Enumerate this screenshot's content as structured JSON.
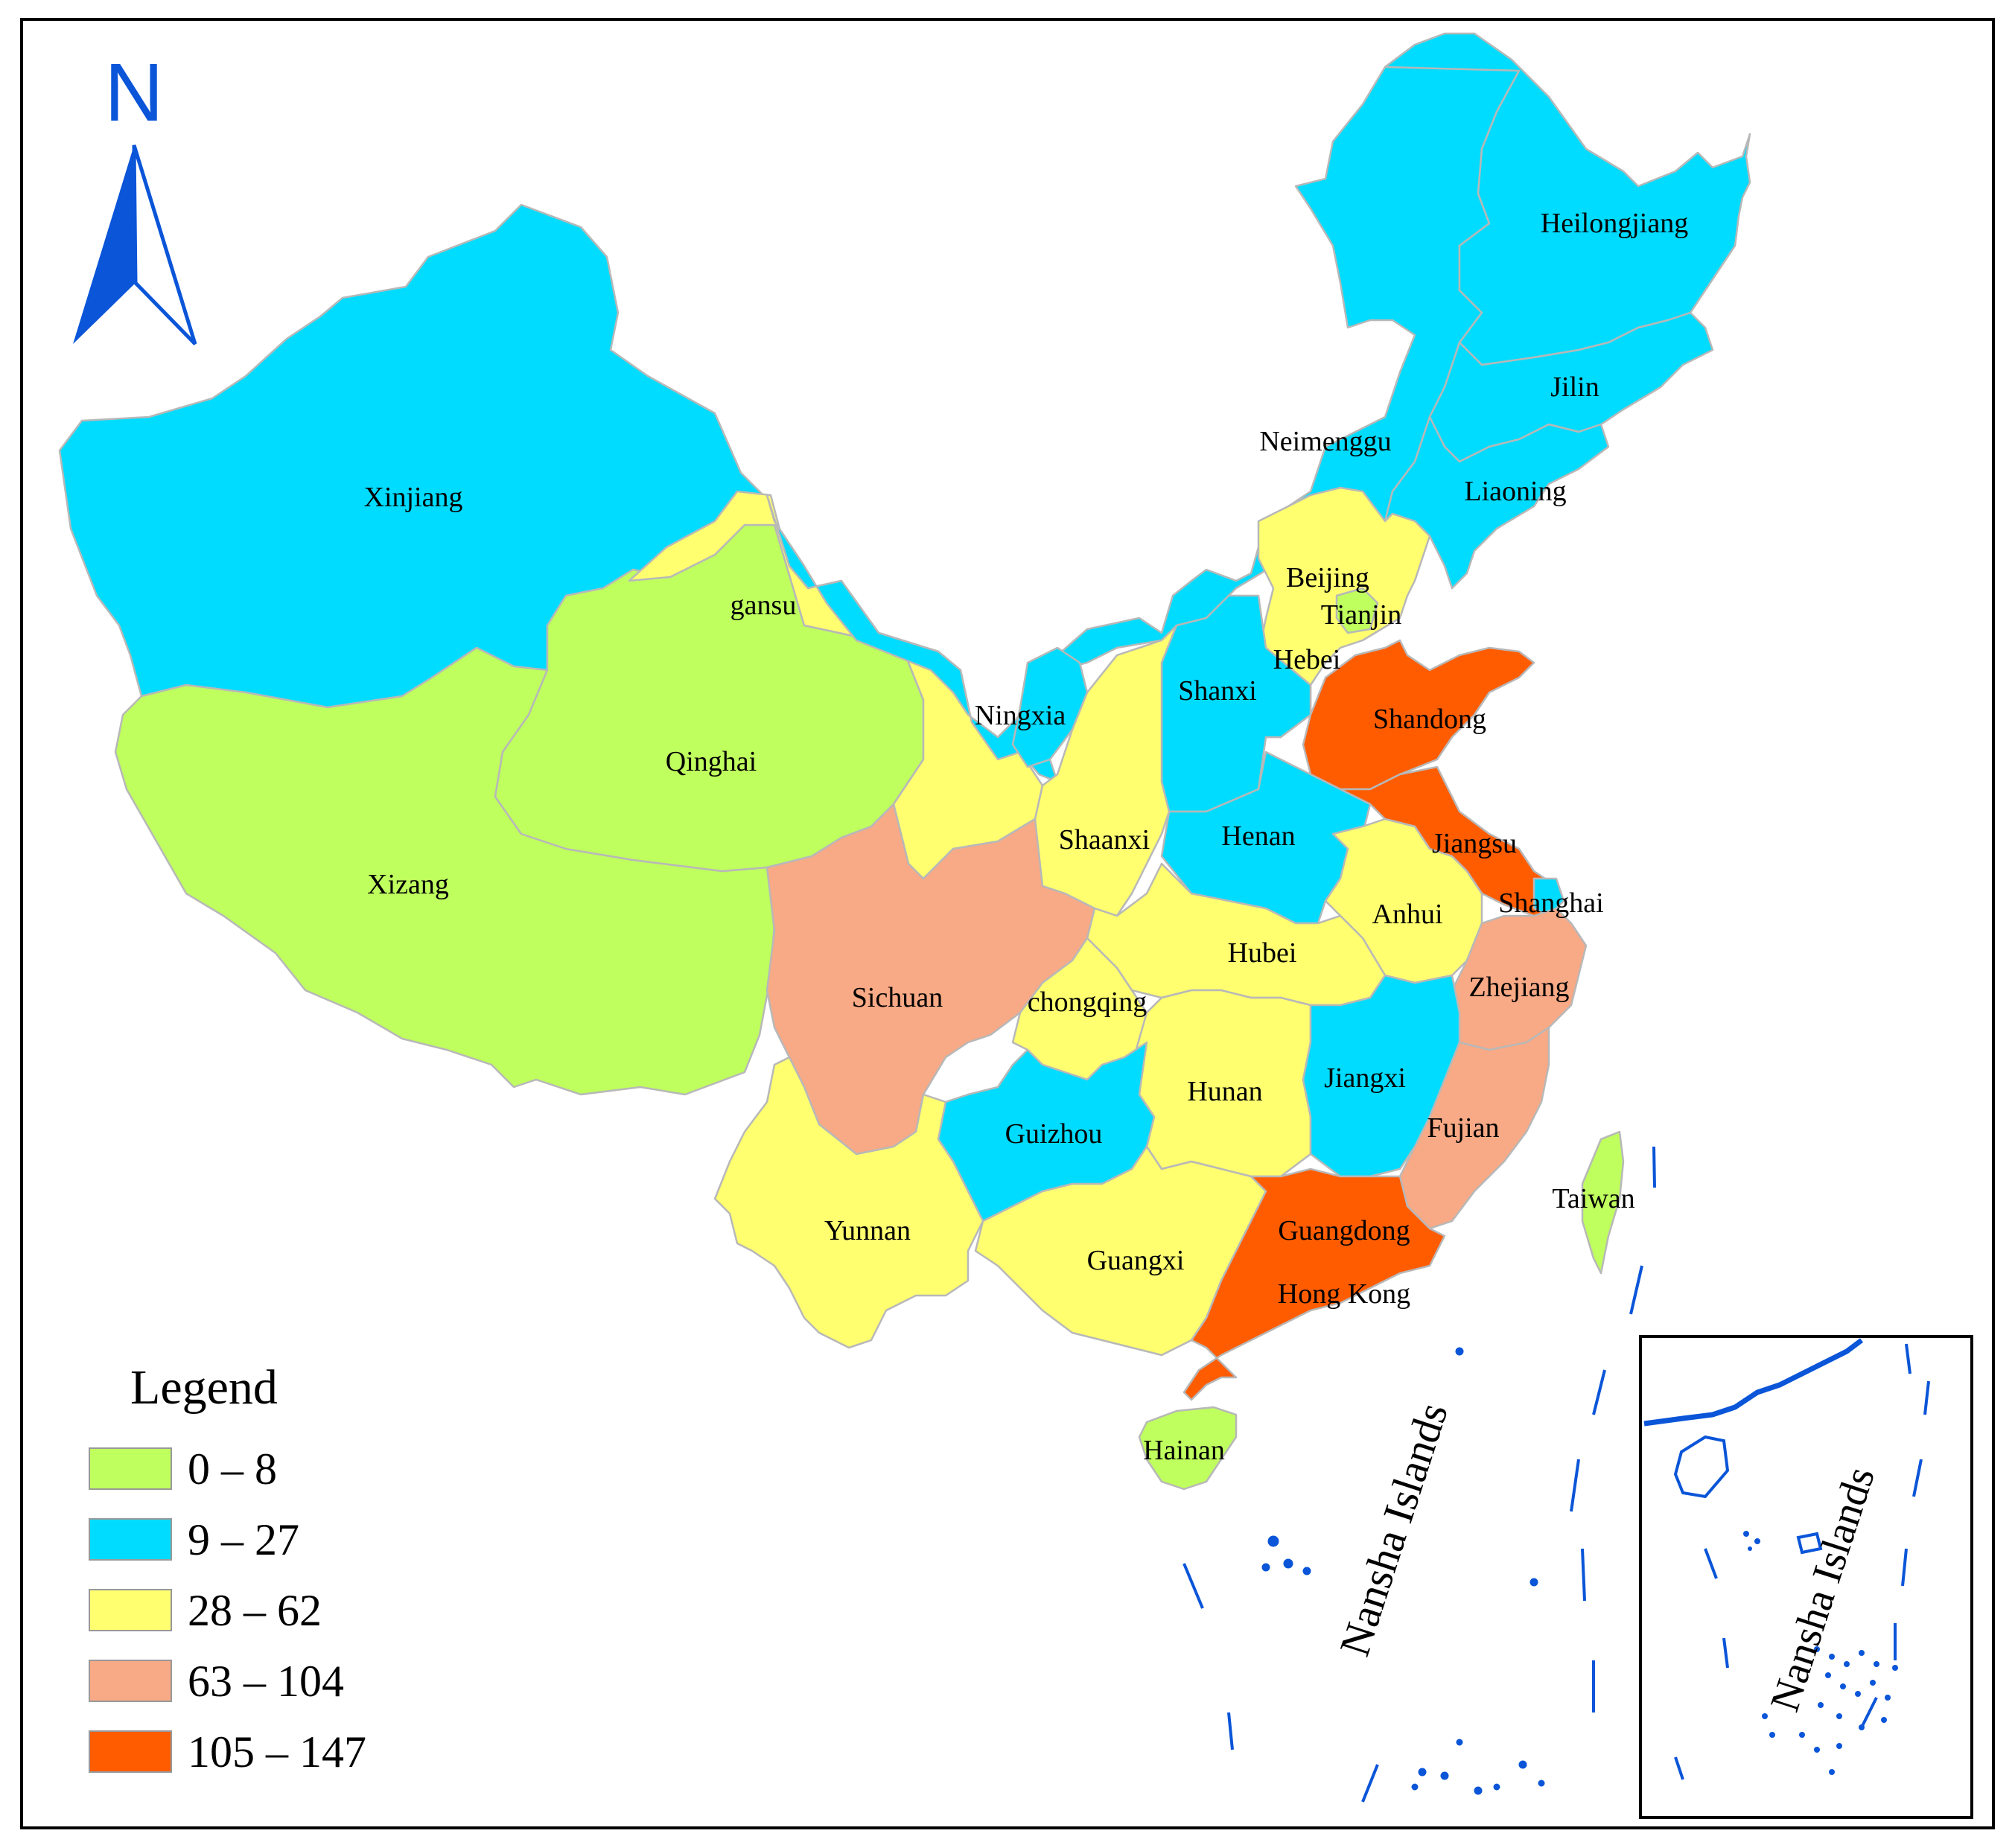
{
  "north_arrow": {
    "label": "N",
    "color": "#0a55d8"
  },
  "colors": {
    "c0_8": "#bfff5e",
    "c9_27": "#00dcff",
    "c28_62": "#ffff70",
    "c63_104": "#f8a985",
    "c105_147": "#ff5c00",
    "coast": "#0a55d8"
  },
  "legend": {
    "title": "Legend",
    "items": [
      {
        "label": "0 – 8",
        "color": "#bfff5e"
      },
      {
        "label": "9 – 27",
        "color": "#00dcff"
      },
      {
        "label": "28 – 62",
        "color": "#ffff70"
      },
      {
        "label": "63 – 104",
        "color": "#f8a985"
      },
      {
        "label": "105 – 147",
        "color": "#ff5c00"
      }
    ]
  },
  "provinces": {
    "xinjiang": "Xinjiang",
    "xizang": "Xizang",
    "qinghai": "Qinghai",
    "gansu": "gansu",
    "neimenggu": "Neimenggu",
    "heilongjiang": "Heilongjiang",
    "jilin": "Jilin",
    "liaoning": "Liaoning",
    "beijing": "Beijing",
    "tianjin": "Tianjin",
    "hebei": "Hebei",
    "shanxi": "Shanxi",
    "ningxia": "Ningxia",
    "shaanxi": "Shaanxi",
    "shandong": "Shandong",
    "henan": "Henan",
    "jiangsu": "Jiangsu",
    "shanghai": "Shanghai",
    "anhui": "Anhui",
    "hubei": "Hubei",
    "zhejiang": "Zhejiang",
    "sichuan": "Sichuan",
    "chongqing": "chongqing",
    "jiangxi": "Jiangxi",
    "hunan": "Hunan",
    "guizhou": "Guizhou",
    "fujian": "Fujian",
    "taiwan": "Taiwan",
    "yunnan": "Yunnan",
    "guangxi": "Guangxi",
    "guangdong": "Guangdong",
    "hong_kong": "Hong Kong",
    "hainan": "Hainan"
  },
  "islands": {
    "main_label": "Nansha Islands",
    "inset_label": "Nansha Islands"
  }
}
